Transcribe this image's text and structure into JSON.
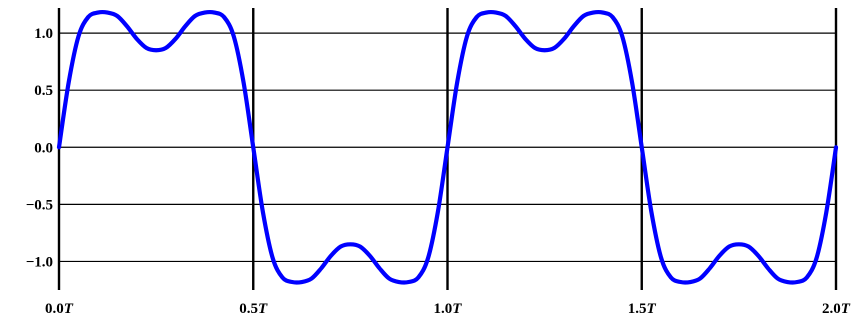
{
  "chart_data": {
    "type": "line",
    "title": "",
    "xlabel": "",
    "ylabel": "",
    "xlim": [
      0,
      2
    ],
    "ylim": [
      -1.25,
      1.22
    ],
    "x_unit": "T",
    "grid": true,
    "legend": "none",
    "x_ticks": [
      {
        "value": 0.0,
        "number": "0.0",
        "unit": "T"
      },
      {
        "value": 0.5,
        "number": "0.5",
        "unit": "T"
      },
      {
        "value": 1.0,
        "number": "1.0",
        "unit": "T"
      },
      {
        "value": 1.5,
        "number": "1.5",
        "unit": "T"
      },
      {
        "value": 2.0,
        "number": "2.0",
        "unit": "T"
      }
    ],
    "y_ticks": [
      {
        "value": 1.0,
        "label": "1.0"
      },
      {
        "value": 0.5,
        "label": "0.5"
      },
      {
        "value": 0.0,
        "label": "0.0"
      },
      {
        "value": -0.5,
        "label": "−0.5"
      },
      {
        "value": -1.0,
        "label": "−1.0"
      }
    ],
    "series": [
      {
        "color": "#0000ff",
        "x": [
          0,
          0.025,
          0.05,
          0.075,
          0.1,
          0.125,
          0.15,
          0.175,
          0.2,
          0.225,
          0.25,
          0.275,
          0.3,
          0.325,
          0.35,
          0.375,
          0.4,
          0.425,
          0.45,
          0.475,
          0.5,
          0.525,
          0.55,
          0.575,
          0.6,
          0.625,
          0.65,
          0.675,
          0.7,
          0.725,
          0.75,
          0.775,
          0.8,
          0.825,
          0.85,
          0.875,
          0.9,
          0.925,
          0.95,
          0.975,
          1.0,
          1.025,
          1.05,
          1.075,
          1.1,
          1.125,
          1.15,
          1.175,
          1.2,
          1.225,
          1.25,
          1.275,
          1.3,
          1.325,
          1.35,
          1.375,
          1.4,
          1.425,
          1.45,
          1.475,
          1.5,
          1.525,
          1.55,
          1.575,
          1.6,
          1.625,
          1.65,
          1.675,
          1.7,
          1.725,
          1.75,
          1.775,
          1.8,
          1.825,
          1.85,
          1.875,
          1.9,
          1.925,
          1.95,
          1.975,
          2.0
        ],
        "y": [
          0,
          0.57,
          0.97,
          1.14,
          1.18,
          1.18,
          1.15,
          1.06,
          0.95,
          0.87,
          0.85,
          0.87,
          0.95,
          1.06,
          1.15,
          1.18,
          1.18,
          1.14,
          0.97,
          0.57,
          0,
          -0.57,
          -0.97,
          -1.14,
          -1.18,
          -1.18,
          -1.15,
          -1.06,
          -0.95,
          -0.87,
          -0.85,
          -0.87,
          -0.95,
          -1.06,
          -1.15,
          -1.18,
          -1.18,
          -1.14,
          -0.97,
          -0.57,
          0,
          0.57,
          0.97,
          1.14,
          1.18,
          1.18,
          1.15,
          1.06,
          0.95,
          0.87,
          0.85,
          0.87,
          0.95,
          1.06,
          1.15,
          1.18,
          1.18,
          1.14,
          0.97,
          0.57,
          0,
          -0.57,
          -0.97,
          -1.14,
          -1.18,
          -1.18,
          -1.15,
          -1.06,
          -0.95,
          -0.87,
          -0.85,
          -0.87,
          -0.95,
          -1.06,
          -1.15,
          -1.18,
          -1.18,
          -1.14,
          -0.97,
          -0.57,
          0
        ]
      }
    ]
  }
}
